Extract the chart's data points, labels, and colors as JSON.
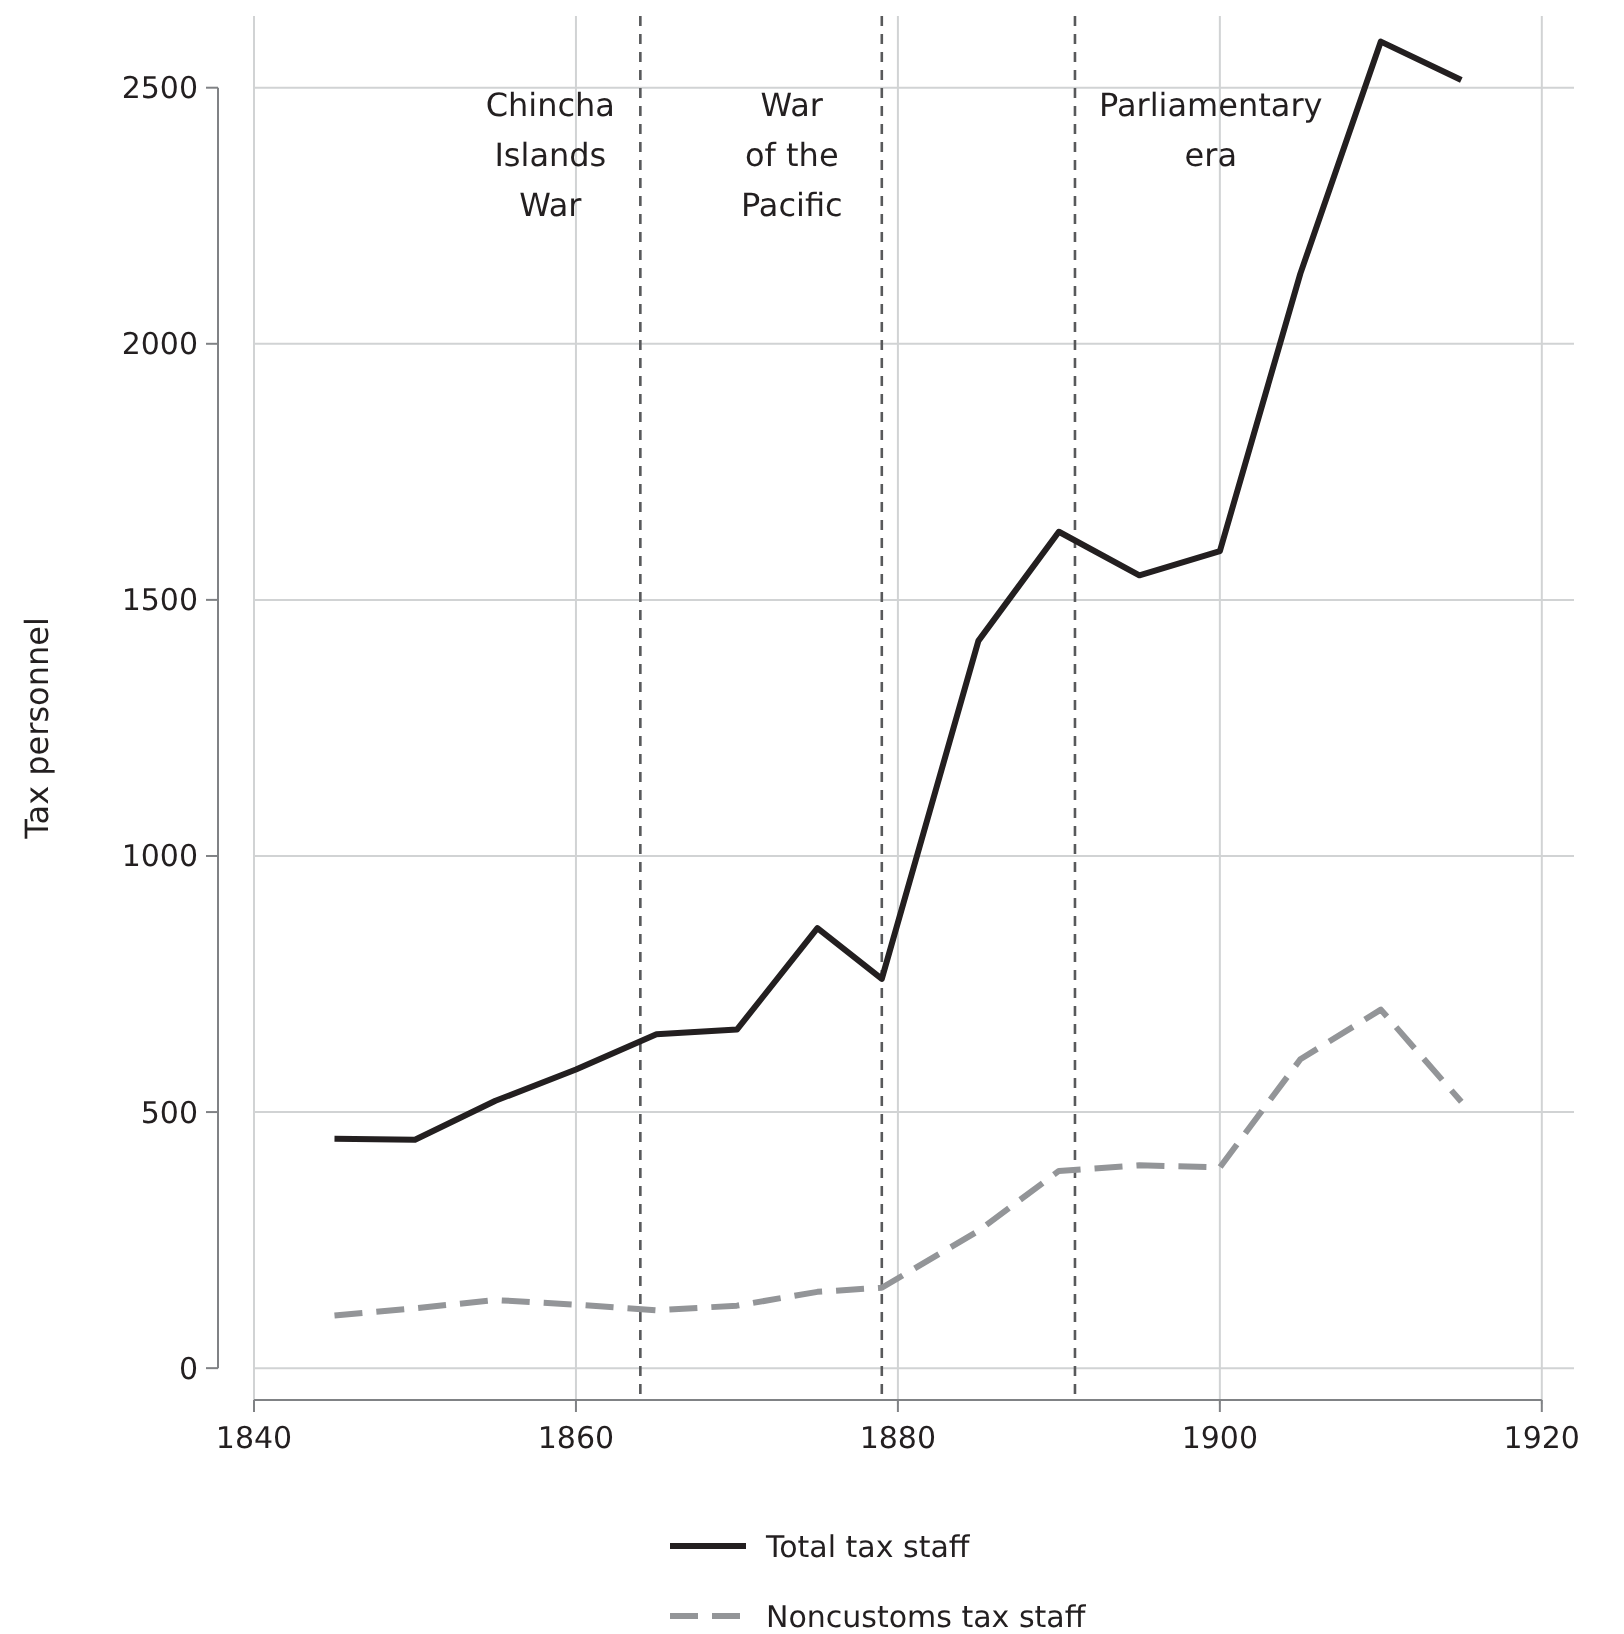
{
  "chart_data": {
    "type": "line",
    "ylabel": "Tax personnel",
    "x": [
      1845,
      1850,
      1855,
      1860,
      1865,
      1870,
      1875,
      1879,
      1885,
      1890,
      1895,
      1900,
      1905,
      1910,
      1915
    ],
    "series": [
      {
        "name": "Total tax staff",
        "color": "#231f20",
        "line_style": "solid",
        "values": [
          448,
          446,
          522,
          583,
          652,
          661,
          859,
          760,
          1420,
          1633,
          1548,
          1595,
          2137,
          2590,
          2515
        ]
      },
      {
        "name": "Noncustoms tax staff",
        "color": "#939598",
        "line_style": "dashed",
        "values": [
          103,
          117,
          133,
          124,
          113,
          122,
          149,
          157,
          268,
          385,
          396,
          392,
          603,
          700,
          520
        ]
      }
    ],
    "xlim": [
      1840,
      1922
    ],
    "ylim": [
      -70,
      2640
    ],
    "xticks": [
      1840,
      1860,
      1880,
      1900,
      1920
    ],
    "yticks": [
      0,
      500,
      1000,
      1500,
      2000,
      2500
    ],
    "grid": true,
    "legend": "bottom",
    "marker": "none",
    "ref_lines": [
      {
        "axis": "x",
        "value": 1864,
        "label": "Chincha\nIslands\nWar",
        "line_style": "dashed",
        "color": "#58595b"
      },
      {
        "axis": "x",
        "value": 1879,
        "label": "War\nof the\nPacific",
        "line_style": "dashed",
        "color": "#58595b"
      },
      {
        "axis": "x",
        "value": 1891,
        "label": "Parliamentary\nera",
        "line_style": "dashed",
        "color": "#58595b"
      }
    ]
  }
}
